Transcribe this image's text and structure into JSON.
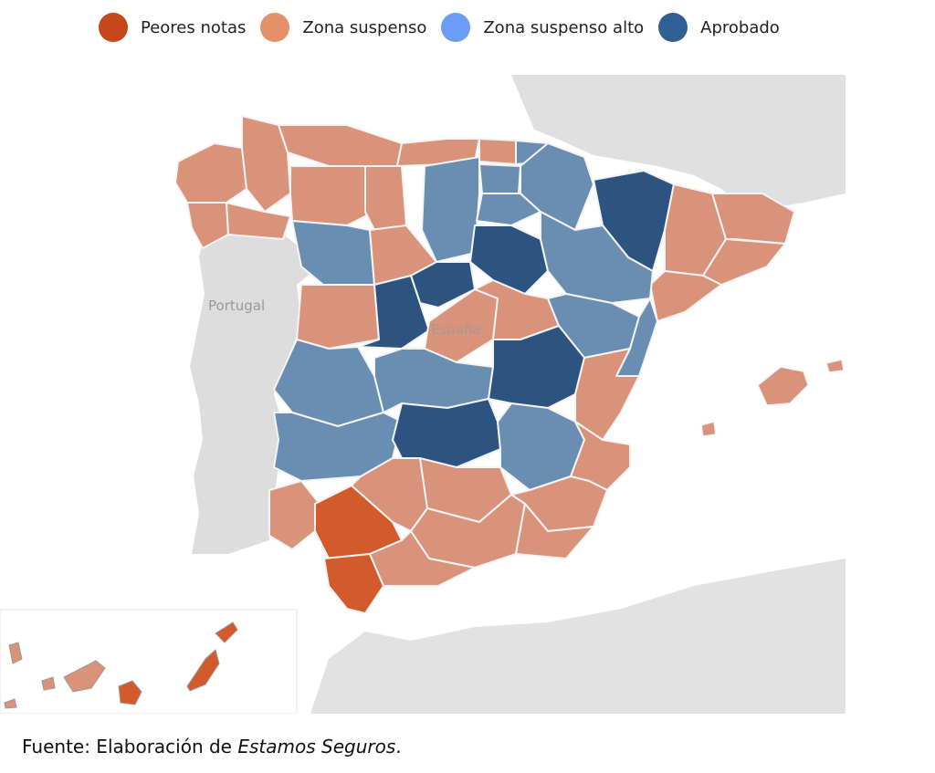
{
  "legend": {
    "items": [
      {
        "key": "peores",
        "label": "Peores notas",
        "color": "#c7471b"
      },
      {
        "key": "suspenso",
        "label": "Zona suspenso",
        "color": "#e4906a"
      },
      {
        "key": "suspenso_alto",
        "label": "Zona suspenso alto",
        "color": "#6c9df5"
      },
      {
        "key": "aprobado",
        "label": "Aprobado",
        "color": "#2f5f93"
      }
    ]
  },
  "map": {
    "labels": {
      "portugal": "Portugal",
      "espana": "España"
    },
    "colors": {
      "land": "#dcdcdc",
      "sea": "#ffffff",
      "peores": "#d35a2b",
      "suspenso": "#d9937b",
      "suspenso_alto": "#6a8db2",
      "aprobado": "#2d5480",
      "border": "#f2f2f2"
    },
    "regions": [
      {
        "name": "A Coruña",
        "category": "suspenso"
      },
      {
        "name": "Lugo",
        "category": "suspenso"
      },
      {
        "name": "Asturias",
        "category": "suspenso"
      },
      {
        "name": "Cantabria",
        "category": "suspenso"
      },
      {
        "name": "Pontevedra",
        "category": "suspenso"
      },
      {
        "name": "Ourense",
        "category": "suspenso"
      },
      {
        "name": "León",
        "category": "suspenso"
      },
      {
        "name": "Palencia",
        "category": "suspenso"
      },
      {
        "name": "Burgos",
        "category": "suspenso_alto"
      },
      {
        "name": "Bizkaia",
        "category": "suspenso"
      },
      {
        "name": "Gipuzkoa",
        "category": "suspenso_alto"
      },
      {
        "name": "Álava",
        "category": "suspenso_alto"
      },
      {
        "name": "La Rioja",
        "category": "suspenso_alto"
      },
      {
        "name": "Navarra",
        "category": "suspenso_alto"
      },
      {
        "name": "Huesca",
        "category": "aprobado"
      },
      {
        "name": "Lleida",
        "category": "suspenso"
      },
      {
        "name": "Girona",
        "category": "suspenso"
      },
      {
        "name": "Barcelona",
        "category": "suspenso"
      },
      {
        "name": "Tarragona",
        "category": "suspenso"
      },
      {
        "name": "Zamora",
        "category": "suspenso_alto"
      },
      {
        "name": "Valladolid",
        "category": "suspenso"
      },
      {
        "name": "Soria",
        "category": "aprobado"
      },
      {
        "name": "Zaragoza",
        "category": "suspenso_alto"
      },
      {
        "name": "Segovia",
        "category": "aprobado"
      },
      {
        "name": "Salamanca",
        "category": "suspenso"
      },
      {
        "name": "Ávila",
        "category": "aprobado"
      },
      {
        "name": "Madrid",
        "category": "suspenso"
      },
      {
        "name": "Guadalajara",
        "category": "suspenso"
      },
      {
        "name": "Teruel",
        "category": "suspenso_alto"
      },
      {
        "name": "Castellón",
        "category": "suspenso_alto"
      },
      {
        "name": "Cáceres",
        "category": "suspenso_alto"
      },
      {
        "name": "Toledo",
        "category": "suspenso_alto"
      },
      {
        "name": "Cuenca",
        "category": "aprobado"
      },
      {
        "name": "Valencia",
        "category": "suspenso"
      },
      {
        "name": "Badajoz",
        "category": "suspenso_alto"
      },
      {
        "name": "Ciudad Real",
        "category": "aprobado"
      },
      {
        "name": "Albacete",
        "category": "suspenso_alto"
      },
      {
        "name": "Alicante",
        "category": "suspenso"
      },
      {
        "name": "Huelva",
        "category": "suspenso"
      },
      {
        "name": "Sevilla",
        "category": "peores"
      },
      {
        "name": "Córdoba",
        "category": "suspenso"
      },
      {
        "name": "Jaén",
        "category": "suspenso"
      },
      {
        "name": "Granada",
        "category": "suspenso"
      },
      {
        "name": "Murcia",
        "category": "suspenso"
      },
      {
        "name": "Almería",
        "category": "suspenso"
      },
      {
        "name": "Cádiz",
        "category": "peores"
      },
      {
        "name": "Málaga",
        "category": "suspenso"
      },
      {
        "name": "Baleares",
        "category": "suspenso"
      },
      {
        "name": "Santa Cruz de Tenerife",
        "category": "suspenso"
      },
      {
        "name": "Las Palmas",
        "category": "peores"
      }
    ]
  },
  "source": {
    "prefix": "Fuente: Elaboración de ",
    "name": "Estamos Seguros",
    "suffix": "."
  }
}
